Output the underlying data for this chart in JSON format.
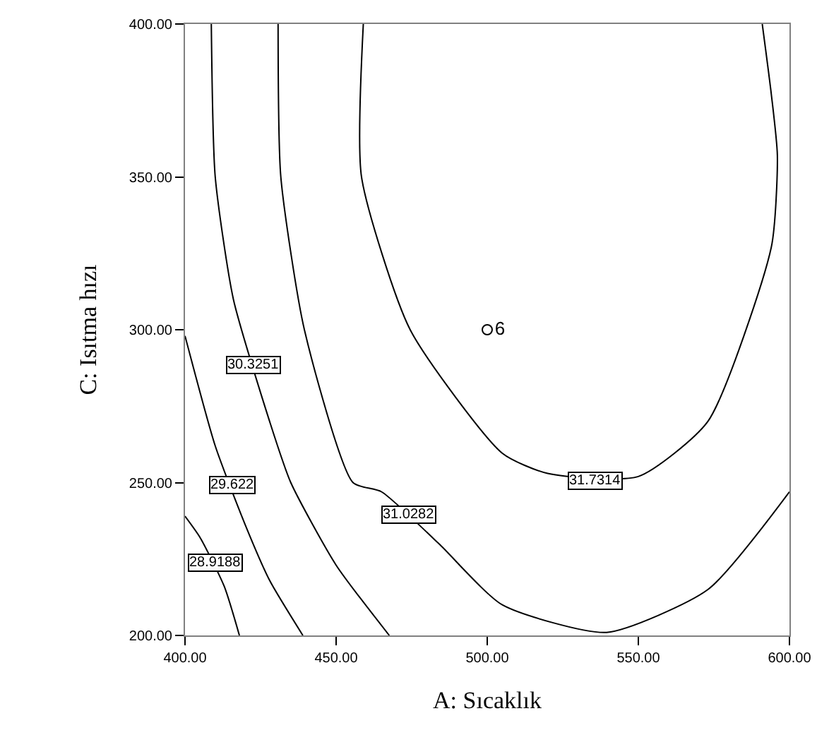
{
  "chart_data": {
    "type": "line",
    "xlabel": "A: Sıcaklık",
    "ylabel": "C: Isıtma hızı",
    "xlim": [
      400,
      600
    ],
    "ylim": [
      200,
      400
    ],
    "xticks": [
      {
        "value": 400,
        "label": "400.00"
      },
      {
        "value": 450,
        "label": "450.00"
      },
      {
        "value": 500,
        "label": "500.00"
      },
      {
        "value": 550,
        "label": "550.00"
      },
      {
        "value": 600,
        "label": "600.00"
      }
    ],
    "yticks": [
      {
        "value": 200,
        "label": "200.00"
      },
      {
        "value": 250,
        "label": "250.00"
      },
      {
        "value": 300,
        "label": "300.00"
      },
      {
        "value": 350,
        "label": "350.00"
      },
      {
        "value": 400,
        "label": "400.00"
      }
    ],
    "series": [
      {
        "color": "#000000",
        "x": [
          400,
          405,
          413,
          418
        ],
        "values": [
          239,
          232,
          216,
          200
        ]
      },
      {
        "color": "#000000",
        "x": [
          400,
          410,
          420,
          428,
          439
        ],
        "values": [
          298,
          262,
          236,
          218,
          200
        ]
      },
      {
        "color": "#000000",
        "x": [
          408.7,
          410,
          416,
          428,
          435,
          450,
          467.6
        ],
        "values": [
          400,
          350,
          310,
          270,
          250,
          223,
          200
        ]
      },
      {
        "color": "#000000",
        "x": [
          430.8,
          431.7,
          439.5,
          455.6,
          465,
          484,
          505,
          539.5,
          573,
          600
        ],
        "values": [
          400,
          350,
          300,
          250,
          247,
          230,
          210,
          201,
          215,
          247
        ]
      },
      {
        "color": "#000000",
        "x": [
          459,
          458.4,
          474.5,
          505,
          520,
          550,
          573,
          594,
          596,
          594,
          591
        ],
        "values": [
          400,
          350,
          300,
          259.6,
          253,
          252,
          270,
          327,
          357,
          377,
          400
        ]
      },
      {
        "type": "scatter",
        "name": "6",
        "marker": "circle",
        "color": "#000000",
        "x": [
          500
        ],
        "values": [
          300
        ]
      }
    ],
    "annotations": [
      {
        "text": "28.9188",
        "x": 410,
        "y": 224
      },
      {
        "text": "29.622",
        "x": 415.6,
        "y": 249
      },
      {
        "text": "30.3251",
        "x": 422.5,
        "y": 288.5
      },
      {
        "text": "31.0282",
        "x": 474,
        "y": 239.4
      },
      {
        "text": "31.7314",
        "x": 535.6,
        "y": 250.5
      }
    ]
  }
}
